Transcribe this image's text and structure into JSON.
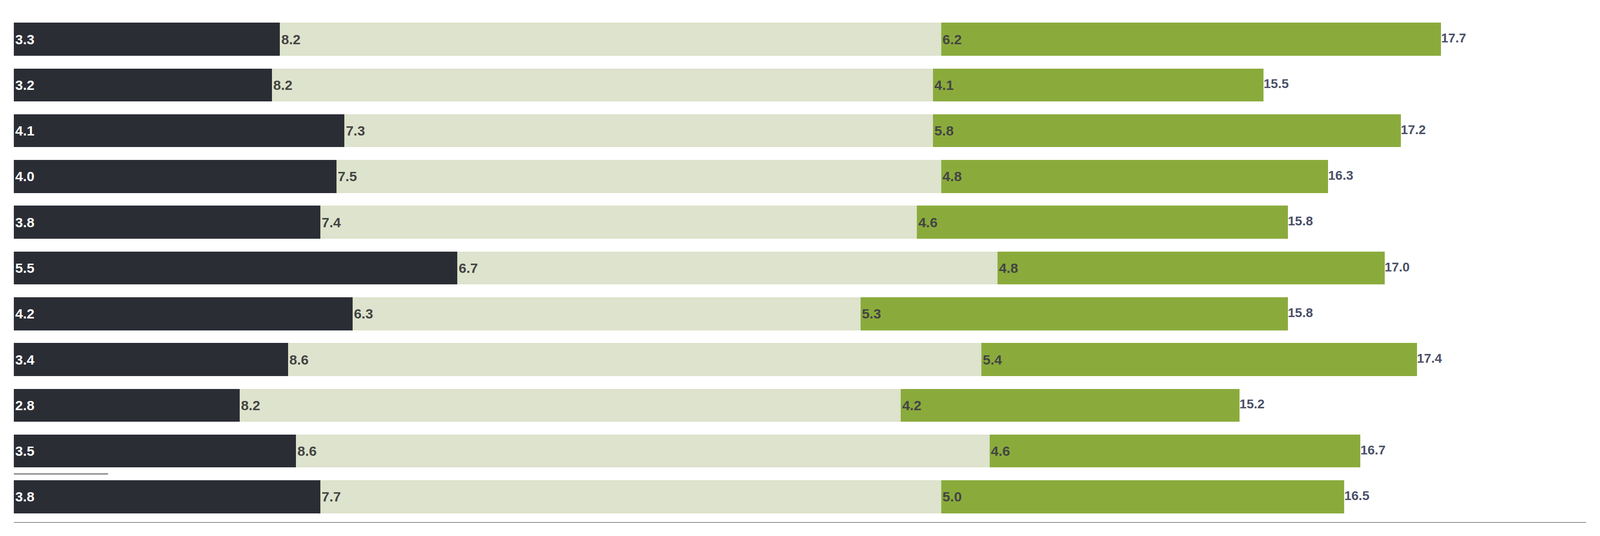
{
  "chart_data": {
    "type": "bar",
    "orientation": "horizontal",
    "stacked": true,
    "data_labels": true,
    "tick_labels": false,
    "grid": false,
    "categories": [
      null,
      null,
      null,
      null,
      null,
      null,
      null,
      null,
      null,
      null,
      null
    ],
    "xlim": [
      0,
      19.5
    ],
    "series": [
      {
        "color": "#2b2d35",
        "values": [
          3.3,
          3.2,
          4.1,
          4.0,
          3.8,
          5.5,
          4.2,
          3.4,
          2.8,
          3.5,
          3.8
        ],
        "value_labels": [
          "3.3",
          "3.2",
          "4.1",
          "4.0",
          "3.8",
          "5.5",
          "4.2",
          "3.4",
          "2.8",
          "3.5",
          "3.8"
        ]
      },
      {
        "color": "#dde3cc",
        "values": [
          8.2,
          8.2,
          7.3,
          7.5,
          7.4,
          6.7,
          6.3,
          8.6,
          8.2,
          8.6,
          7.7
        ],
        "value_labels": [
          "8.2",
          "8.2",
          "7.3",
          "7.5",
          "7.4",
          "6.7",
          "6.3",
          "8.6",
          "8.2",
          "8.6",
          "7.7"
        ]
      },
      {
        "color": "#8aab3c",
        "values": [
          6.2,
          4.1,
          5.8,
          4.8,
          4.6,
          4.8,
          5.3,
          5.4,
          4.2,
          4.6,
          5.0
        ],
        "value_labels": [
          "6.2",
          "4.1",
          "5.8",
          "4.8",
          "4.6",
          "4.8",
          "5.3",
          "5.4",
          "4.2",
          "4.6",
          "5.0"
        ]
      }
    ],
    "totals": [
      17.7,
      15.5,
      17.2,
      16.3,
      15.8,
      17.0,
      15.8,
      17.4,
      15.2,
      16.7,
      16.5
    ],
    "total_labels": [
      "17.7",
      "15.5",
      "17.2",
      "16.3",
      "15.8",
      "17.0",
      "15.8",
      "17.4",
      "15.2",
      "16.7",
      "16.5"
    ]
  }
}
